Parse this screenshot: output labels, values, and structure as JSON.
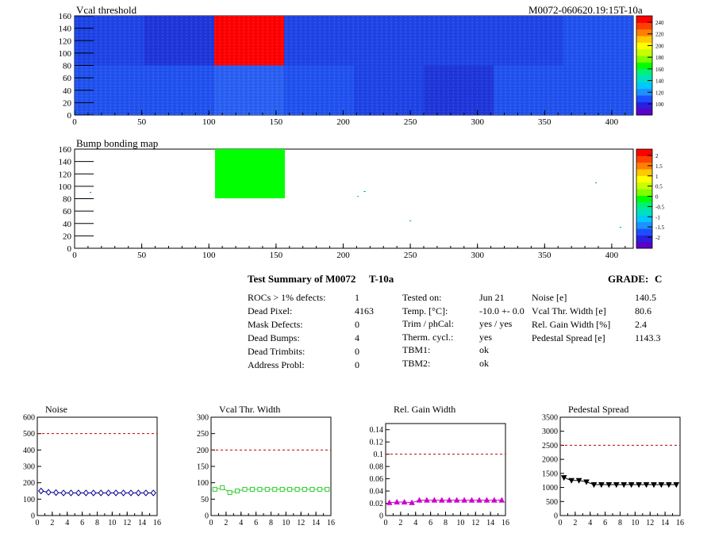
{
  "header": {
    "map1_title": "Vcal threshold",
    "module_id": "M0072-060620.19:15T-10a",
    "map2_title": "Bump bonding map"
  },
  "maps": {
    "x_ticks": [
      "0",
      "50",
      "100",
      "150",
      "200",
      "250",
      "300",
      "350",
      "400"
    ],
    "y_ticks": [
      "0",
      "20",
      "40",
      "60",
      "80",
      "100",
      "120",
      "140",
      "160"
    ],
    "xlim": [
      0,
      416
    ],
    "ylim": [
      0,
      160
    ],
    "map1_palette_ticks": [
      "100",
      "120",
      "140",
      "160",
      "180",
      "200",
      "220",
      "240"
    ],
    "map2_palette_ticks": [
      "-2",
      "-1.5",
      "-1",
      "-0.5",
      "0",
      "0.5",
      "1",
      "1.5",
      "2"
    ],
    "map1_levels": {
      "top": [
        2,
        1,
        9,
        2,
        2,
        2,
        2,
        3
      ],
      "bottom": [
        3,
        3,
        4,
        3,
        2,
        1,
        3,
        3
      ]
    },
    "colors": {
      "low": "#1a2fd8",
      "high": "#ff0000",
      "bump_block": "#00ff00",
      "limit_line": "#c00000"
    }
  },
  "summary": {
    "title": "Test Summary of M0072",
    "temp_tag": "T-10a",
    "grade_label": "GRADE:",
    "grade_value": "C",
    "col1": [
      {
        "label": "ROCs > 1% defects:",
        "value": "1"
      },
      {
        "label": "Dead Pixel:",
        "value": "4163"
      },
      {
        "label": "Mask Defects:",
        "value": "0"
      },
      {
        "label": "Dead Bumps:",
        "value": "4"
      },
      {
        "label": "Dead Trimbits:",
        "value": "0"
      },
      {
        "label": "Address Probl:",
        "value": "0"
      }
    ],
    "col2": [
      {
        "label": "Tested on:",
        "value": "Jun 21"
      },
      {
        "label": "Temp. [°C]:",
        "value": "-10.0 +- 0.0"
      },
      {
        "label": "Trim / phCal:",
        "value": "yes / yes"
      },
      {
        "label": "Therm. cycl.:",
        "value": "yes"
      },
      {
        "label": "TBM1:",
        "value": "ok"
      },
      {
        "label": "TBM2:",
        "value": "ok"
      }
    ],
    "col3": [
      {
        "label": "Noise [e]",
        "value": "140.5"
      },
      {
        "label": "Vcal Thr. Width [e]",
        "value": "80.6"
      },
      {
        "label": "Rel. Gain Width [%]",
        "value": "2.4"
      },
      {
        "label": "Pedestal Spread [e]",
        "value": "1143.3"
      }
    ]
  },
  "chart_data": [
    {
      "type": "line",
      "title": "Noise",
      "x": [
        0,
        1,
        2,
        3,
        4,
        5,
        6,
        7,
        8,
        9,
        10,
        11,
        12,
        13,
        14,
        15
      ],
      "values": [
        150,
        142,
        140,
        138,
        138,
        138,
        138,
        138,
        138,
        138,
        138,
        138,
        138,
        138,
        138,
        138
      ],
      "limit": 500,
      "xlim": [
        0,
        16
      ],
      "ylim": [
        0,
        600
      ],
      "y_ticks": [
        "0",
        "100",
        "200",
        "300",
        "400",
        "500",
        "600"
      ],
      "x_ticks": [
        "0",
        "2",
        "4",
        "6",
        "8",
        "10",
        "12",
        "14",
        "16"
      ],
      "color": "#00008b",
      "marker": "diamond"
    },
    {
      "type": "line",
      "title": "Vcal Thr. Width",
      "x": [
        0,
        1,
        2,
        3,
        4,
        5,
        6,
        7,
        8,
        9,
        10,
        11,
        12,
        13,
        14,
        15
      ],
      "values": [
        80,
        85,
        70,
        75,
        80,
        80,
        80,
        80,
        80,
        80,
        80,
        80,
        80,
        80,
        80,
        80
      ],
      "limit": 200,
      "xlim": [
        0,
        16
      ],
      "ylim": [
        0,
        300
      ],
      "y_ticks": [
        "0",
        "50",
        "100",
        "150",
        "200",
        "250",
        "300"
      ],
      "x_ticks": [
        "0",
        "2",
        "4",
        "6",
        "8",
        "10",
        "12",
        "14",
        "16"
      ],
      "color": "#33cc33",
      "marker": "square"
    },
    {
      "type": "line",
      "title": "Rel. Gain Width",
      "x": [
        0,
        1,
        2,
        3,
        4,
        5,
        6,
        7,
        8,
        9,
        10,
        11,
        12,
        13,
        14,
        15
      ],
      "values": [
        0.021,
        0.022,
        0.022,
        0.021,
        0.025,
        0.025,
        0.025,
        0.025,
        0.025,
        0.025,
        0.025,
        0.025,
        0.025,
        0.025,
        0.025,
        0.025
      ],
      "limit": 0.1,
      "xlim": [
        0,
        16
      ],
      "ylim": [
        0,
        0.15
      ],
      "y_ticks": [
        "0",
        "0.02",
        "0.04",
        "0.06",
        "0.08",
        "0.1",
        "0.12",
        "0.14"
      ],
      "x_ticks": [
        "0",
        "2",
        "4",
        "6",
        "8",
        "10",
        "12",
        "14",
        "16"
      ],
      "color": "#cc00cc",
      "marker": "triangle"
    },
    {
      "type": "line",
      "title": "Pedestal Spread",
      "x": [
        0,
        1,
        2,
        3,
        4,
        5,
        6,
        7,
        8,
        9,
        10,
        11,
        12,
        13,
        14,
        15
      ],
      "values": [
        1350,
        1250,
        1250,
        1200,
        1100,
        1100,
        1100,
        1100,
        1100,
        1100,
        1100,
        1100,
        1100,
        1100,
        1100,
        1100
      ],
      "limit": 2500,
      "xlim": [
        0,
        16
      ],
      "ylim": [
        0,
        3500
      ],
      "y_ticks": [
        "0",
        "500",
        "1000",
        "1500",
        "2000",
        "2500",
        "3000",
        "3500"
      ],
      "x_ticks": [
        "0",
        "2",
        "4",
        "6",
        "8",
        "10",
        "12",
        "14",
        "16"
      ],
      "color": "#000000",
      "marker": "triangle-down"
    }
  ]
}
